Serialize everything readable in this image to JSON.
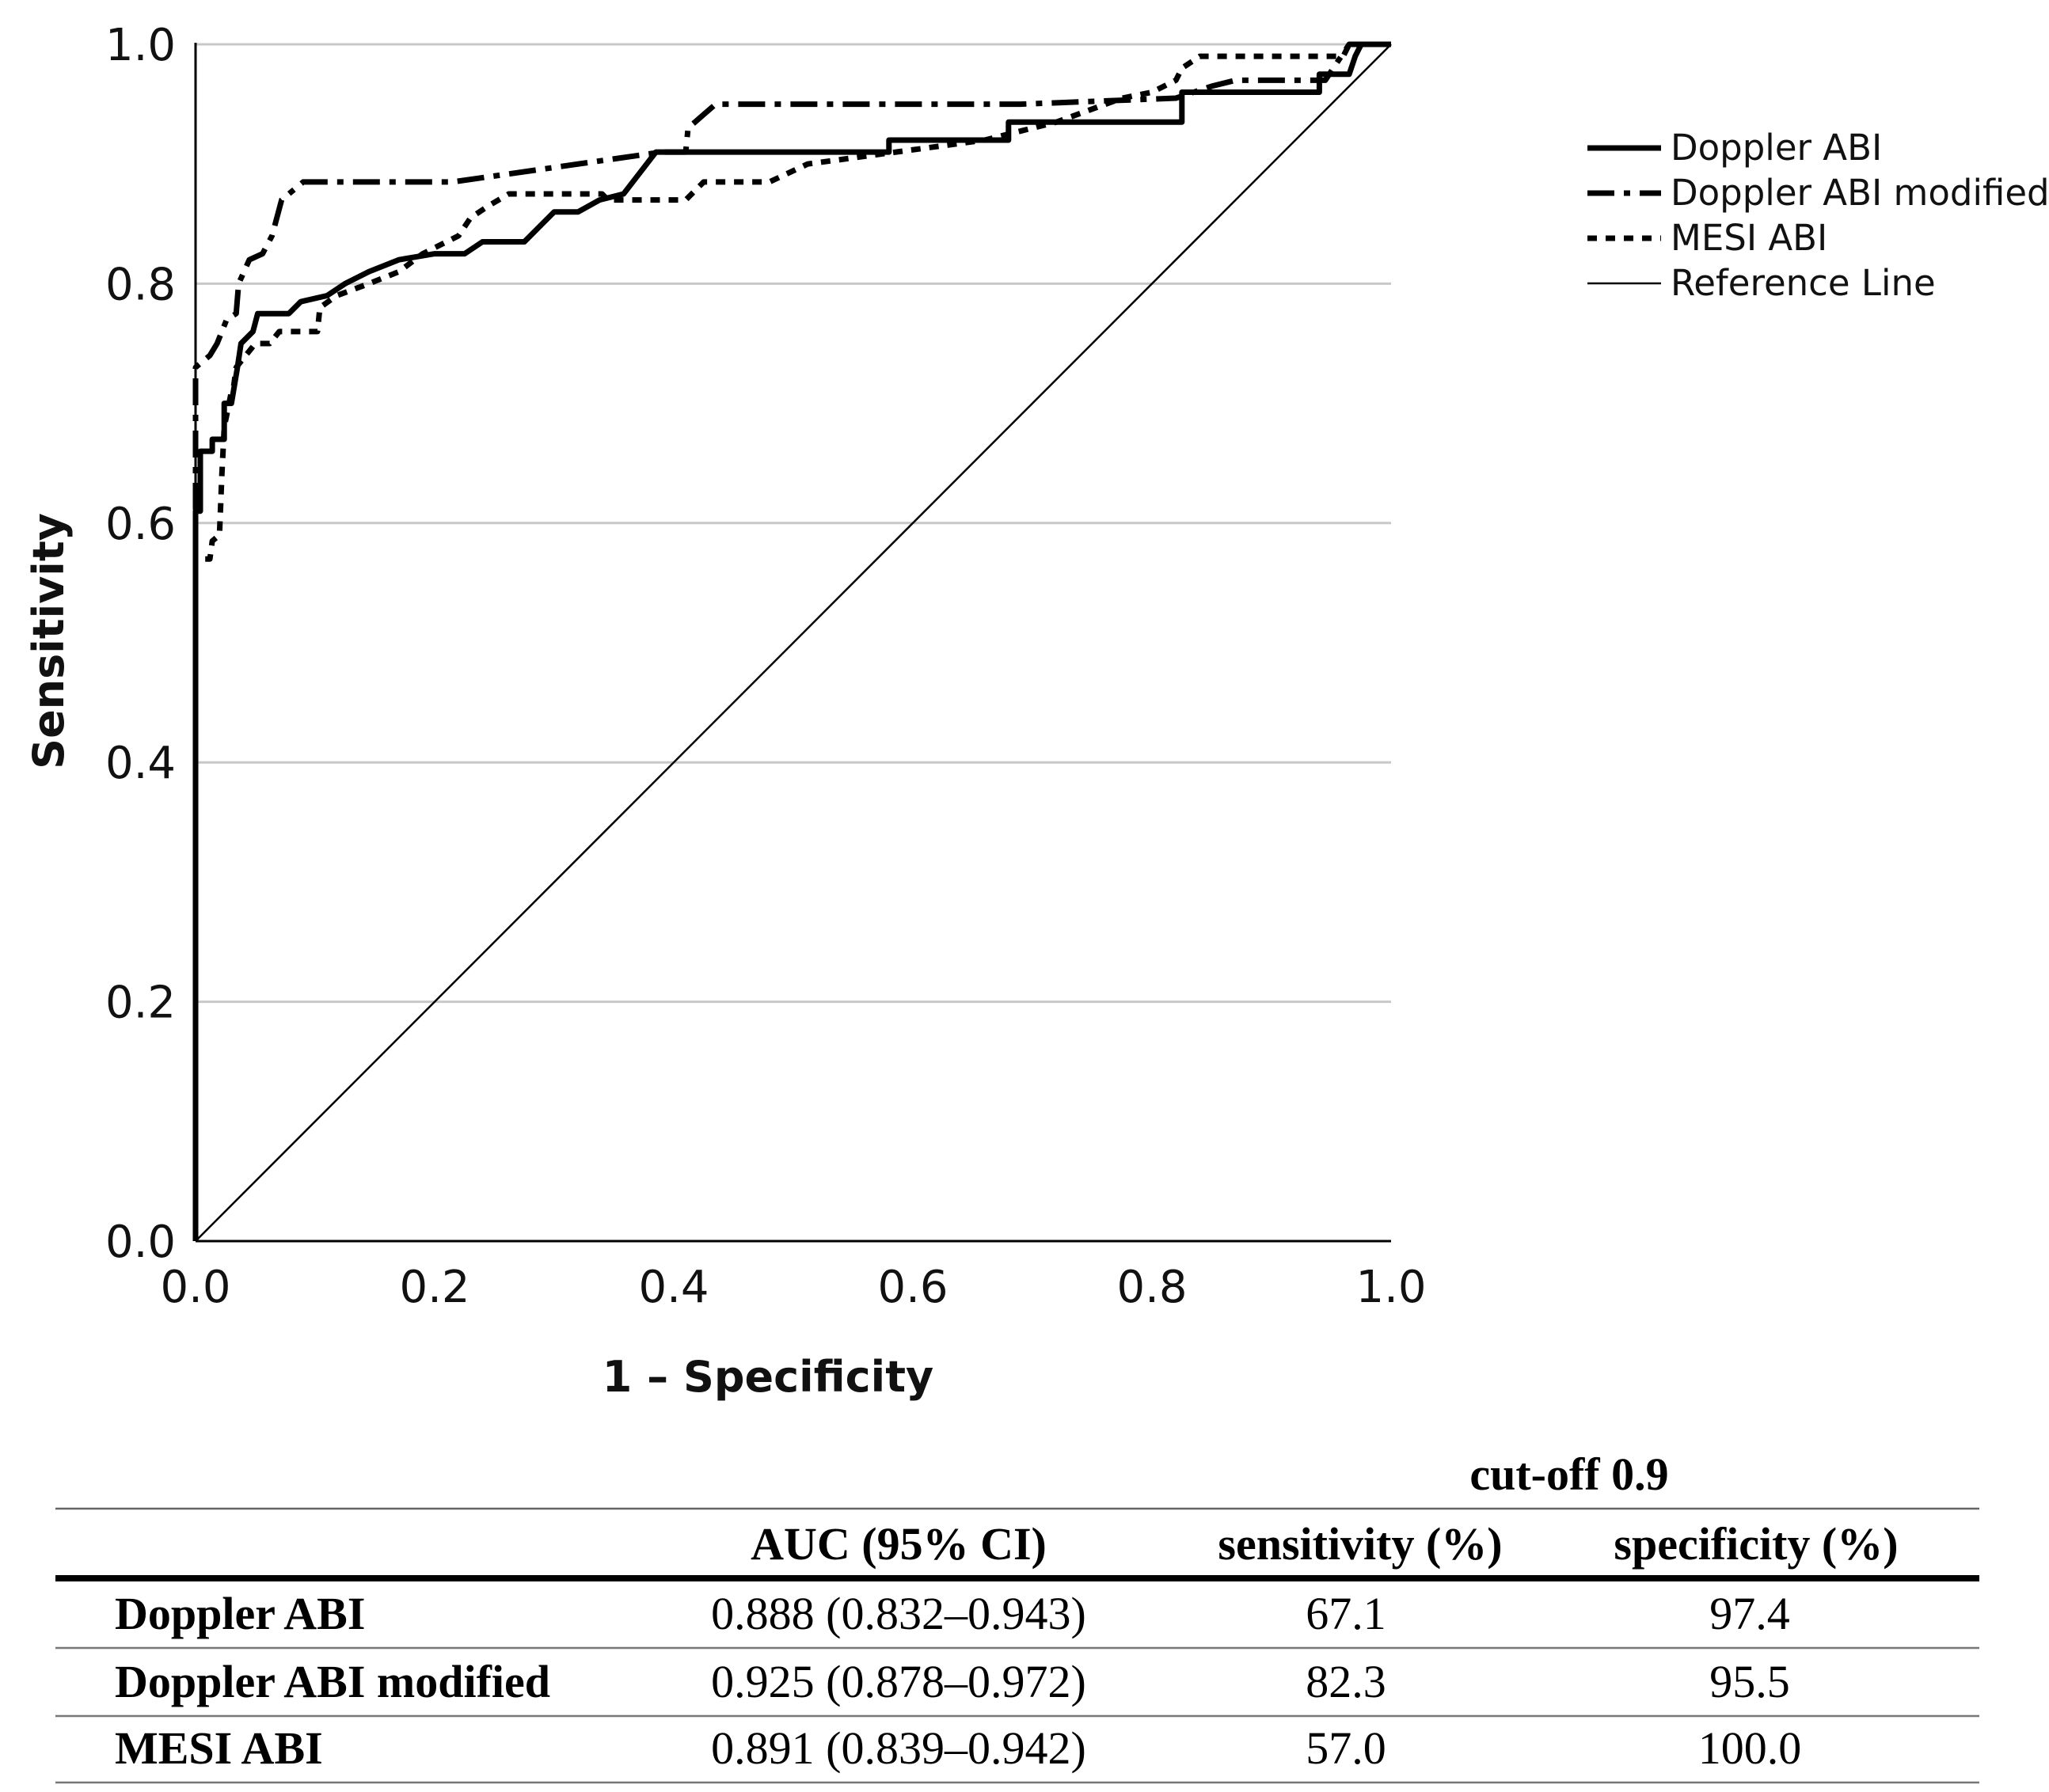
{
  "chart_data": {
    "type": "line",
    "title": "",
    "xlabel": "1 – Specificity",
    "ylabel": "Sensitivity",
    "xlim": [
      0,
      1
    ],
    "ylim": [
      0,
      1
    ],
    "xticks": [
      "0.0",
      "0.2",
      "0.4",
      "0.6",
      "0.8",
      "1.0"
    ],
    "yticks": [
      "0.0",
      "0.2",
      "0.4",
      "0.6",
      "0.8",
      "1.0"
    ],
    "grid": "horizontal",
    "legend_position": "right",
    "series": [
      {
        "name": "Doppler ABI",
        "style": "solid-thick",
        "points": [
          [
            0,
            0
          ],
          [
            0,
            0.61
          ],
          [
            0.004,
            0.61
          ],
          [
            0.004,
            0.66
          ],
          [
            0.014,
            0.66
          ],
          [
            0.014,
            0.67
          ],
          [
            0.024,
            0.67
          ],
          [
            0.024,
            0.7
          ],
          [
            0.03,
            0.7
          ],
          [
            0.035,
            0.73
          ],
          [
            0.038,
            0.75
          ],
          [
            0.048,
            0.76
          ],
          [
            0.052,
            0.775
          ],
          [
            0.078,
            0.775
          ],
          [
            0.088,
            0.785
          ],
          [
            0.11,
            0.79
          ],
          [
            0.125,
            0.8
          ],
          [
            0.145,
            0.81
          ],
          [
            0.17,
            0.82
          ],
          [
            0.2,
            0.825
          ],
          [
            0.225,
            0.825
          ],
          [
            0.24,
            0.835
          ],
          [
            0.275,
            0.835
          ],
          [
            0.29,
            0.85
          ],
          [
            0.3,
            0.86
          ],
          [
            0.32,
            0.86
          ],
          [
            0.338,
            0.87
          ],
          [
            0.358,
            0.875
          ],
          [
            0.385,
            0.91
          ],
          [
            0.4,
            0.91
          ],
          [
            0.58,
            0.91
          ],
          [
            0.58,
            0.92
          ],
          [
            0.68,
            0.92
          ],
          [
            0.68,
            0.935
          ],
          [
            0.825,
            0.935
          ],
          [
            0.825,
            0.96
          ],
          [
            0.94,
            0.96
          ],
          [
            0.94,
            0.975
          ],
          [
            0.965,
            0.975
          ],
          [
            0.97,
            0.99
          ],
          [
            0.975,
            1.0
          ],
          [
            1.0,
            1.0
          ]
        ]
      },
      {
        "name": "Doppler ABI modified",
        "style": "dash-dot",
        "points": [
          [
            0,
            0
          ],
          [
            0,
            0.73
          ],
          [
            0.012,
            0.74
          ],
          [
            0.018,
            0.75
          ],
          [
            0.022,
            0.76
          ],
          [
            0.026,
            0.77
          ],
          [
            0.034,
            0.775
          ],
          [
            0.036,
            0.8
          ],
          [
            0.045,
            0.82
          ],
          [
            0.056,
            0.825
          ],
          [
            0.064,
            0.84
          ],
          [
            0.072,
            0.87
          ],
          [
            0.09,
            0.885
          ],
          [
            0.1,
            0.885
          ],
          [
            0.215,
            0.885
          ],
          [
            0.39,
            0.91
          ],
          [
            0.41,
            0.91
          ],
          [
            0.412,
            0.93
          ],
          [
            0.435,
            0.95
          ],
          [
            0.69,
            0.95
          ],
          [
            0.82,
            0.955
          ],
          [
            0.85,
            0.965
          ],
          [
            0.87,
            0.97
          ],
          [
            0.945,
            0.97
          ],
          [
            0.965,
            1.0
          ],
          [
            1.0,
            1.0
          ]
        ]
      },
      {
        "name": "MESI ABI",
        "style": "dotted",
        "points": [
          [
            0,
            0
          ],
          [
            0,
            0.57
          ],
          [
            0.012,
            0.57
          ],
          [
            0.014,
            0.585
          ],
          [
            0.02,
            0.59
          ],
          [
            0.022,
            0.64
          ],
          [
            0.024,
            0.68
          ],
          [
            0.026,
            0.69
          ],
          [
            0.03,
            0.71
          ],
          [
            0.032,
            0.715
          ],
          [
            0.034,
            0.73
          ],
          [
            0.042,
            0.74
          ],
          [
            0.05,
            0.75
          ],
          [
            0.062,
            0.75
          ],
          [
            0.07,
            0.76
          ],
          [
            0.102,
            0.76
          ],
          [
            0.104,
            0.78
          ],
          [
            0.118,
            0.79
          ],
          [
            0.145,
            0.8
          ],
          [
            0.17,
            0.81
          ],
          [
            0.19,
            0.825
          ],
          [
            0.2,
            0.83
          ],
          [
            0.22,
            0.84
          ],
          [
            0.23,
            0.855
          ],
          [
            0.245,
            0.865
          ],
          [
            0.262,
            0.875
          ],
          [
            0.34,
            0.875
          ],
          [
            0.345,
            0.87
          ],
          [
            0.41,
            0.87
          ],
          [
            0.425,
            0.885
          ],
          [
            0.48,
            0.885
          ],
          [
            0.512,
            0.9
          ],
          [
            0.66,
            0.92
          ],
          [
            0.72,
            0.935
          ],
          [
            0.775,
            0.955
          ],
          [
            0.8,
            0.96
          ],
          [
            0.82,
            0.97
          ],
          [
            0.825,
            0.98
          ],
          [
            0.84,
            0.99
          ],
          [
            0.96,
            0.99
          ],
          [
            0.965,
            1.0
          ],
          [
            1.0,
            1.0
          ]
        ]
      },
      {
        "name": "Reference Line",
        "style": "thin",
        "points": [
          [
            0,
            0
          ],
          [
            1,
            1
          ]
        ]
      }
    ]
  },
  "table": {
    "group_header": "cut-off 0.9",
    "headers": [
      "",
      "AUC (95% CI)",
      "sensitivity (%)",
      "specificity (%)"
    ],
    "rows": [
      [
        "Doppler ABI",
        "0.888 (0.832–0.943)",
        "67.1",
        "97.4"
      ],
      [
        "Doppler ABI modified",
        "0.925 (0.878–0.972)",
        "82.3",
        "95.5"
      ],
      [
        "MESI ABI",
        "0.891 (0.839–0.942)",
        "57.0",
        "100.0"
      ]
    ]
  }
}
